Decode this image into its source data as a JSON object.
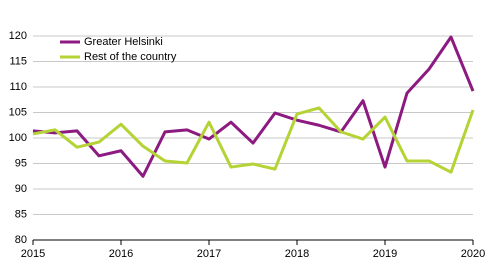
{
  "chart_data": {
    "type": "line",
    "x": [
      2015,
      2015.25,
      2015.5,
      2015.75,
      2016,
      2016.25,
      2016.5,
      2016.75,
      2017,
      2017.25,
      2017.5,
      2017.75,
      2018,
      2018.25,
      2018.5,
      2018.75,
      2019,
      2019.25,
      2019.5,
      2019.75,
      2020
    ],
    "series": [
      {
        "name": "Greater Helsinki",
        "color": "#8c1a80",
        "values": [
          101.4,
          101,
          101.4,
          96.5,
          97.5,
          92.5,
          101.2,
          101.6,
          99.8,
          103.1,
          99,
          104.9,
          103.5,
          102.5,
          101.2,
          107.3,
          94.3,
          108.8,
          113.5,
          119.8,
          109.2
        ]
      },
      {
        "name": "Rest of the country",
        "color": "#b4d334",
        "values": [
          100.8,
          101.6,
          98.2,
          99.2,
          102.7,
          98.4,
          95.5,
          95.1,
          103.1,
          94.3,
          94.9,
          93.9,
          104.7,
          105.9,
          101.2,
          99.8,
          104.1,
          95.5,
          95.5,
          93.3,
          105.5
        ]
      }
    ],
    "xlim": [
      2015,
      2020
    ],
    "xticks": [
      2015,
      2016,
      2017,
      2018,
      2019,
      2020
    ],
    "ylim": [
      80,
      120
    ],
    "yticks": [
      80,
      85,
      90,
      95,
      100,
      105,
      110,
      115,
      120
    ],
    "grid": true,
    "legend": "top-left"
  }
}
